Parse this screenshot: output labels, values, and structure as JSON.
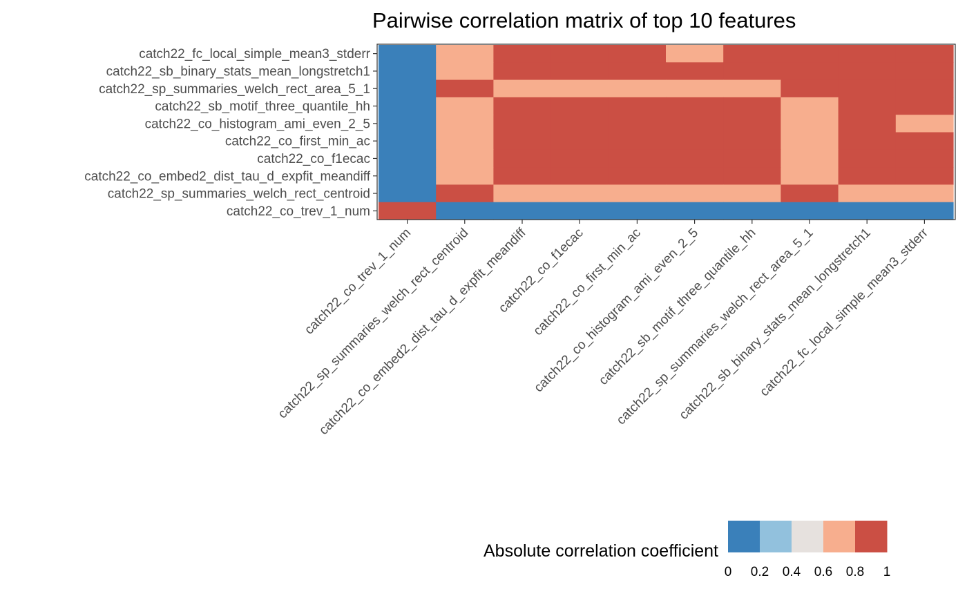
{
  "chart_data": {
    "type": "heatmap",
    "title": "Pairwise correlation matrix of top 10 features",
    "xlabel": "",
    "ylabel": "",
    "x_categories": [
      "catch22_co_trev_1_num",
      "catch22_sp_summaries_welch_rect_centroid",
      "catch22_co_embed2_dist_tau_d_expfit_meandiff",
      "catch22_co_f1ecac",
      "catch22_co_first_min_ac",
      "catch22_co_histogram_ami_even_2_5",
      "catch22_sb_motif_three_quantile_hh",
      "catch22_sp_summaries_welch_rect_area_5_1",
      "catch22_sb_binary_stats_mean_longstretch1",
      "catch22_fc_local_simple_mean3_stderr"
    ],
    "y_categories_top_to_bottom": [
      "catch22_fc_local_simple_mean3_stderr",
      "catch22_sb_binary_stats_mean_longstretch1",
      "catch22_sp_summaries_welch_rect_area_5_1",
      "catch22_sb_motif_three_quantile_hh",
      "catch22_co_histogram_ami_even_2_5",
      "catch22_co_first_min_ac",
      "catch22_co_f1ecac",
      "catch22_co_embed2_dist_tau_d_expfit_meandiff",
      "catch22_sp_summaries_welch_rect_centroid",
      "catch22_co_trev_1_num"
    ],
    "values_bin_top_to_bottom": [
      [
        0,
        3,
        4,
        4,
        4,
        3,
        4,
        4,
        4,
        4
      ],
      [
        0,
        3,
        4,
        4,
        4,
        4,
        4,
        4,
        4,
        4
      ],
      [
        0,
        4,
        3,
        3,
        3,
        3,
        3,
        4,
        4,
        4
      ],
      [
        0,
        3,
        4,
        4,
        4,
        4,
        4,
        3,
        4,
        4
      ],
      [
        0,
        3,
        4,
        4,
        4,
        4,
        4,
        3,
        4,
        3
      ],
      [
        0,
        3,
        4,
        4,
        4,
        4,
        4,
        3,
        4,
        4
      ],
      [
        0,
        3,
        4,
        4,
        4,
        4,
        4,
        3,
        4,
        4
      ],
      [
        0,
        3,
        4,
        4,
        4,
        4,
        4,
        3,
        4,
        4
      ],
      [
        0,
        4,
        3,
        3,
        3,
        3,
        3,
        4,
        3,
        3
      ],
      [
        4,
        0,
        0,
        0,
        0,
        0,
        0,
        0,
        0,
        0
      ]
    ],
    "legend": {
      "title": "Absolute correlation coefficient",
      "bin_edges": [
        "0",
        "0.2",
        "0.4",
        "0.6",
        "0.8",
        "1"
      ],
      "bin_colors": [
        "#3a80ba",
        "#92c1dd",
        "#e6e1de",
        "#f7ae8e",
        "#cb4f44"
      ],
      "position": "bottom"
    },
    "grid": false
  }
}
